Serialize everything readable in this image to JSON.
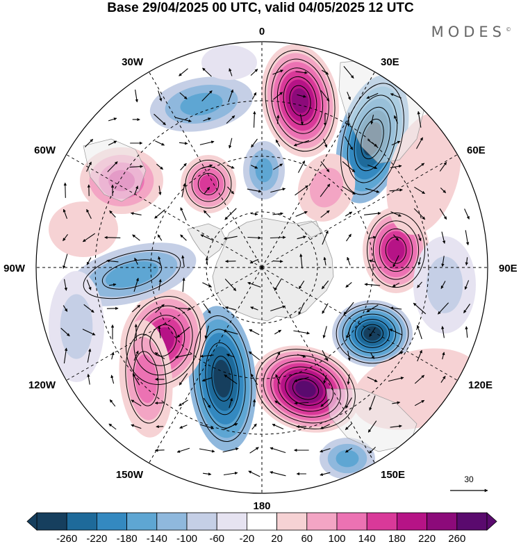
{
  "title": "Base 29/04/2025 00 UTC, valid 04/05/2025 12 UTC",
  "logo": "MODES",
  "logo_mark": "©",
  "map": {
    "projection": "south-polar-stereographic",
    "longitude_labels": {
      "top": "0",
      "top_right": "30E",
      "right_upper": "60E",
      "right": "90E",
      "right_lower": "120E",
      "bottom_right": "150E",
      "bottom": "180",
      "bottom_left": "150W",
      "left_lower": "120W",
      "left": "90W",
      "left_upper": "60W",
      "top_left": "30W"
    },
    "reference_vector": "30"
  },
  "colorbar": {
    "ticks": [
      "-260",
      "-220",
      "-180",
      "-140",
      "-100",
      "-60",
      "-20",
      "20",
      "60",
      "100",
      "140",
      "180",
      "220",
      "260"
    ],
    "colors": [
      "#163f5e",
      "#1e6a9a",
      "#3489c0",
      "#5ea6d3",
      "#8fb8dd",
      "#c5cfe6",
      "#e6e3f1",
      "#ffffff",
      "#f6d2d4",
      "#f3a5c4",
      "#ec72b3",
      "#d93999",
      "#b61386",
      "#8c0a7a",
      "#5a0a6e"
    ]
  },
  "colors": {
    "land": "#ececec",
    "graticule": "#000000"
  }
}
